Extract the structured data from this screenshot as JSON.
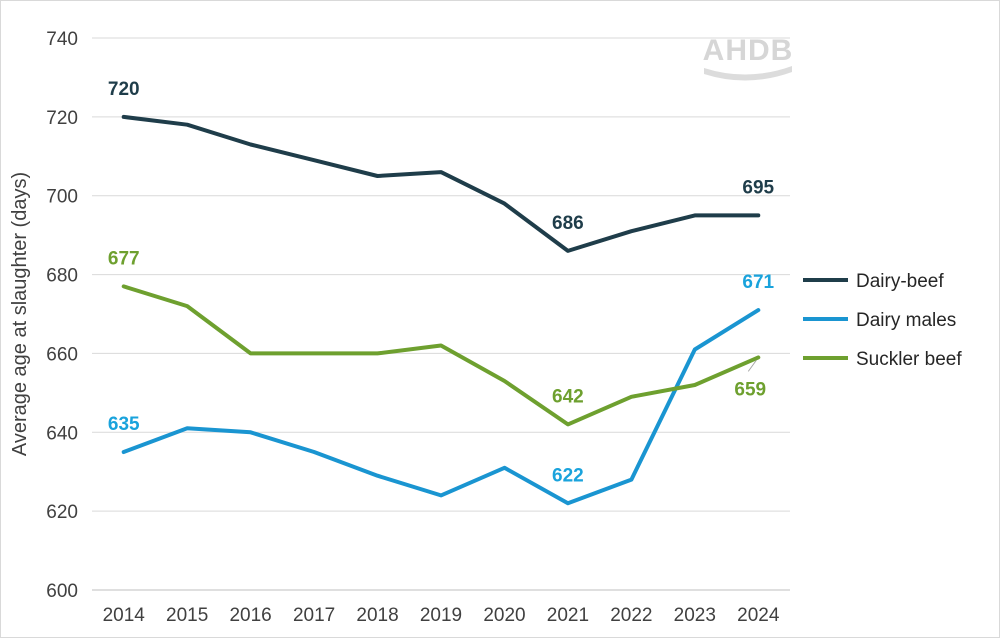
{
  "chart_data": {
    "type": "line",
    "title": "",
    "xlabel": "",
    "ylabel": "Average age at slaughter (days)",
    "ylim": [
      600,
      740
    ],
    "yticks": [
      600,
      620,
      640,
      660,
      680,
      700,
      720,
      740
    ],
    "grid": "horizontal",
    "legend_position": "right",
    "logo_text": "AHDB",
    "x": [
      "2014",
      "2015",
      "2016",
      "2017",
      "2018",
      "2019",
      "2020",
      "2021",
      "2022",
      "2023",
      "2024"
    ],
    "series": [
      {
        "name": "Dairy-beef",
        "color": "#1f3d4a",
        "values": [
          720,
          718,
          713,
          709,
          705,
          706,
          698,
          686,
          691,
          695,
          695
        ],
        "labels": [
          {
            "index": 0,
            "text": "720"
          },
          {
            "index": 7,
            "text": "686"
          },
          {
            "index": 10,
            "text": "695"
          }
        ]
      },
      {
        "name": "Dairy males",
        "color": "#1a95d1",
        "label_color": "#1aa3dc",
        "values": [
          635,
          641,
          640,
          635,
          629,
          624,
          631,
          622,
          628,
          661,
          671
        ],
        "labels": [
          {
            "index": 0,
            "text": "635"
          },
          {
            "index": 7,
            "text": "622"
          },
          {
            "index": 10,
            "text": "671"
          }
        ]
      },
      {
        "name": "Suckler beef",
        "color": "#6ea02f",
        "label_color": "#6ea02f",
        "values": [
          677,
          672,
          660,
          660,
          660,
          662,
          653,
          642,
          649,
          652,
          659
        ],
        "labels": [
          {
            "index": 0,
            "text": "677"
          },
          {
            "index": 7,
            "text": "642"
          },
          {
            "index": 10,
            "text": "659"
          }
        ]
      }
    ]
  }
}
